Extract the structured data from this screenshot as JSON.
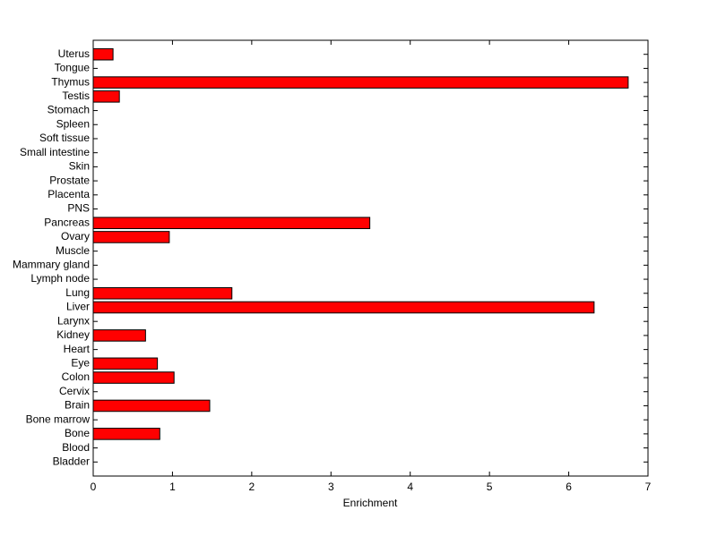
{
  "chart_data": {
    "type": "barh",
    "xlabel": "Enrichment",
    "categories": [
      "Uterus",
      "Tongue",
      "Thymus",
      "Testis",
      "Stomach",
      "Spleen",
      "Soft tissue",
      "Small intestine",
      "Skin",
      "Prostate",
      "Placenta",
      "PNS",
      "Pancreas",
      "Ovary",
      "Muscle",
      "Mammary gland",
      "Lymph node",
      "Lung",
      "Liver",
      "Larynx",
      "Kidney",
      "Heart",
      "Eye",
      "Colon",
      "Cervix",
      "Brain",
      "Bone marrow",
      "Bone",
      "Blood",
      "Bladder"
    ],
    "values": [
      0.25,
      0,
      6.75,
      0.33,
      0,
      0,
      0,
      0,
      0,
      0,
      0,
      0,
      3.49,
      0.96,
      0,
      0,
      0,
      1.75,
      6.32,
      0,
      0.66,
      0,
      0.81,
      1.02,
      0,
      1.47,
      0,
      0.84,
      0,
      0
    ],
    "color": "#ff0000",
    "xlim": [
      0,
      7
    ],
    "xticks": [
      0,
      1,
      2,
      3,
      4,
      5,
      6,
      7
    ]
  }
}
